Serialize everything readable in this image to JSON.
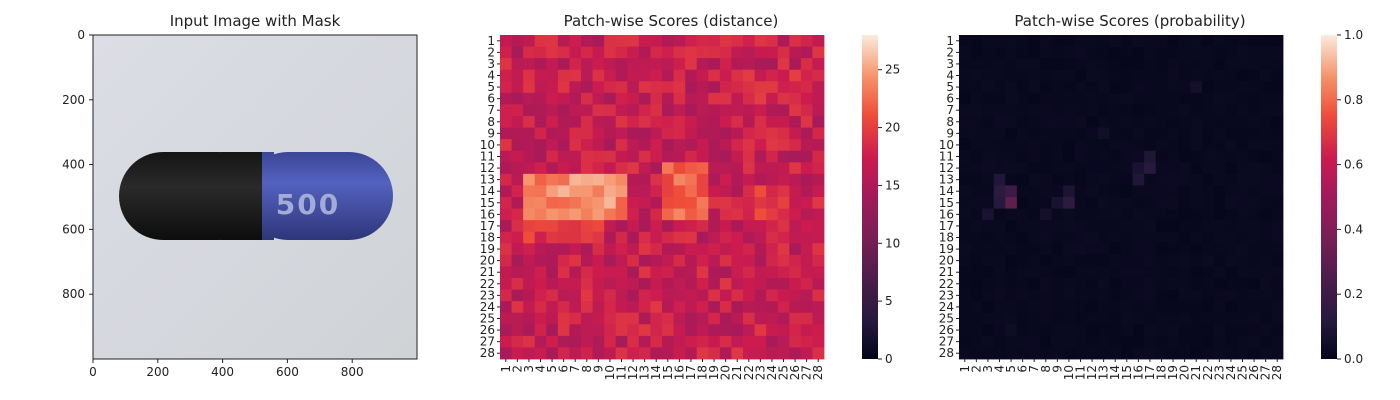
{
  "chart_data": [
    {
      "type": "image",
      "title": "Input Image with Mask",
      "xlabel": "",
      "ylabel": "",
      "xlim": [
        0,
        1000
      ],
      "ylim": [
        1000,
        0
      ],
      "xticks": [
        "0",
        "200",
        "400",
        "600",
        "800"
      ],
      "yticks": [
        "0",
        "200",
        "400",
        "600",
        "800"
      ],
      "image": {
        "background": "#d8dbe0",
        "capsule_left_color": "#1b1b1b",
        "capsule_right_color": "#4a57b0",
        "imprint": "500",
        "capsule_x_range": [
          80,
          920
        ],
        "capsule_y_range": [
          360,
          630
        ],
        "seam_x": 510
      }
    },
    {
      "type": "heatmap",
      "title": "Patch-wise Scores (distance)",
      "xlabel": "",
      "ylabel": "",
      "rows": [
        "1",
        "2",
        "3",
        "4",
        "5",
        "6",
        "7",
        "8",
        "9",
        "10",
        "11",
        "12",
        "13",
        "14",
        "15",
        "16",
        "17",
        "18",
        "19",
        "20",
        "21",
        "22",
        "23",
        "24",
        "25",
        "26",
        "27",
        "28"
      ],
      "cols": [
        "1",
        "2",
        "3",
        "4",
        "5",
        "6",
        "7",
        "8",
        "9",
        "10",
        "11",
        "12",
        "13",
        "14",
        "15",
        "16",
        "17",
        "18",
        "19",
        "20",
        "21",
        "22",
        "23",
        "24",
        "25",
        "26",
        "27",
        "28"
      ],
      "colormap": "rocket",
      "vmin": 0,
      "vmax": 28,
      "colorbar_ticks": [
        "0",
        "5",
        "10",
        "15",
        "20",
        "25"
      ],
      "base_value": 17,
      "hot_regions": [
        {
          "rows": [
            13,
            16
          ],
          "cols": [
            3,
            11
          ],
          "value": 26
        },
        {
          "rows": [
            12,
            16
          ],
          "cols": [
            15,
            18
          ],
          "value": 24
        },
        {
          "rows": [
            17,
            18
          ],
          "cols": [
            3,
            9
          ],
          "value": 21
        },
        {
          "rows": [
            14,
            16
          ],
          "cols": [
            23,
            25
          ],
          "value": 21
        },
        {
          "rows": [
            4,
            6
          ],
          "cols": [
            20,
            27
          ],
          "value": 20
        }
      ]
    },
    {
      "type": "heatmap",
      "title": "Patch-wise Scores (probability)",
      "xlabel": "",
      "ylabel": "",
      "rows": [
        "1",
        "2",
        "3",
        "4",
        "5",
        "6",
        "7",
        "8",
        "9",
        "10",
        "11",
        "12",
        "13",
        "14",
        "15",
        "16",
        "17",
        "18",
        "19",
        "20",
        "21",
        "22",
        "23",
        "24",
        "25",
        "26",
        "27",
        "28"
      ],
      "cols": [
        "1",
        "2",
        "3",
        "4",
        "5",
        "6",
        "7",
        "8",
        "9",
        "10",
        "11",
        "12",
        "13",
        "14",
        "15",
        "16",
        "17",
        "18",
        "19",
        "20",
        "21",
        "22",
        "23",
        "24",
        "25",
        "26",
        "27",
        "28"
      ],
      "colormap": "rocket",
      "vmin": 0.0,
      "vmax": 1.0,
      "colorbar_ticks": [
        "0.0",
        "0.2",
        "0.4",
        "0.6",
        "0.8",
        "1.0"
      ],
      "base_value": 0.01,
      "hot_cells": [
        {
          "row": 15,
          "col": 5,
          "value": 0.3
        },
        {
          "row": 14,
          "col": 5,
          "value": 0.2
        },
        {
          "row": 14,
          "col": 4,
          "value": 0.14
        },
        {
          "row": 15,
          "col": 4,
          "value": 0.12
        },
        {
          "row": 13,
          "col": 4,
          "value": 0.1
        },
        {
          "row": 16,
          "col": 3,
          "value": 0.08
        },
        {
          "row": 15,
          "col": 10,
          "value": 0.14
        },
        {
          "row": 14,
          "col": 10,
          "value": 0.09
        },
        {
          "row": 15,
          "col": 9,
          "value": 0.08
        },
        {
          "row": 16,
          "col": 8,
          "value": 0.06
        },
        {
          "row": 12,
          "col": 17,
          "value": 0.12
        },
        {
          "row": 11,
          "col": 17,
          "value": 0.1
        },
        {
          "row": 13,
          "col": 16,
          "value": 0.1
        },
        {
          "row": 12,
          "col": 16,
          "value": 0.08
        },
        {
          "row": 5,
          "col": 21,
          "value": 0.06
        },
        {
          "row": 9,
          "col": 13,
          "value": 0.05
        },
        {
          "row": 26,
          "col": 5,
          "value": 0.04
        }
      ]
    }
  ]
}
